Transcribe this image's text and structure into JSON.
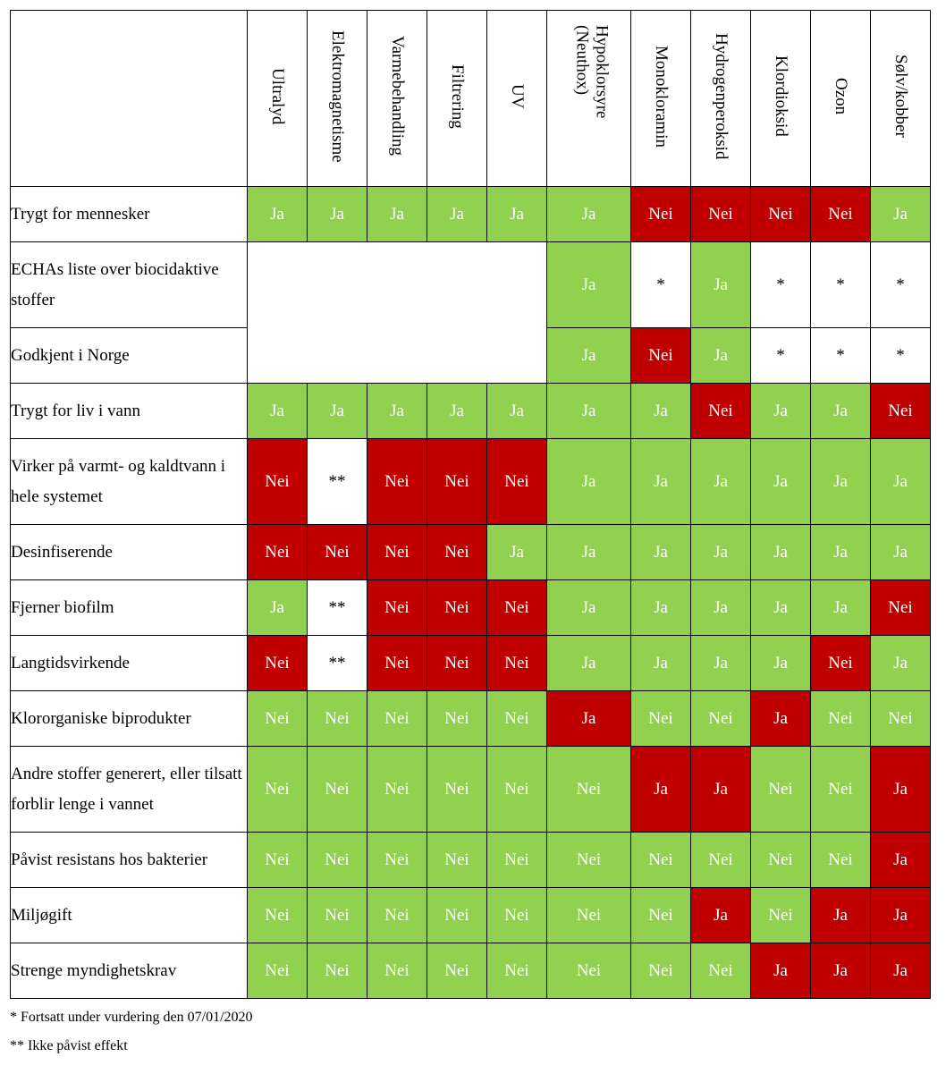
{
  "columns": [
    "Ultralyd",
    "Elektromagnetisme",
    "Varmebehandling",
    "Filtrering",
    "UV",
    "Hypoklorsyre (Neuthox)",
    "Monokloramin",
    "Hydrogenperoksid",
    "Klordioksid",
    "Ozon",
    "Sølv/kobber"
  ],
  "rows": [
    {
      "label": "Trygt for mennesker",
      "cells": [
        "Ja",
        "Ja",
        "Ja",
        "Ja",
        "Ja",
        "Ja",
        "Nei",
        "Nei",
        "Nei",
        "Nei",
        "Ja"
      ]
    },
    {
      "label": "ECHAs liste over biocidaktive stoffer",
      "cells": [
        "",
        "",
        "",
        "",
        "",
        "Ja",
        "*",
        "Ja",
        "*",
        "*",
        "*"
      ]
    },
    {
      "label": "Godkjent i Norge",
      "cells": [
        "",
        "",
        "",
        "",
        "",
        "Ja",
        "Nei",
        "Ja",
        "*",
        "*",
        "*"
      ]
    },
    {
      "label": "Trygt for liv i vann",
      "cells": [
        "Ja",
        "Ja",
        "Ja",
        "Ja",
        "Ja",
        "Ja",
        "Ja",
        "Nei",
        "Ja",
        "Ja",
        "Nei"
      ]
    },
    {
      "label": "Virker på varmt- og kaldtvann i hele systemet",
      "cells": [
        "Nei",
        "**",
        "Nei",
        "Nei",
        "Nei",
        "Ja",
        "Ja",
        "Ja",
        "Ja",
        "Ja",
        "Ja"
      ]
    },
    {
      "label": "Desinfiserende",
      "cells": [
        "Nei",
        "Nei",
        "Nei",
        "Nei",
        "Ja",
        "Ja",
        "Ja",
        "Ja",
        "Ja",
        "Ja",
        "Ja"
      ]
    },
    {
      "label": "Fjerner biofilm",
      "cells": [
        "Ja",
        "**",
        "Nei",
        "Nei",
        "Nei",
        "Ja",
        "Ja",
        "Ja",
        "Ja",
        "Ja",
        "Nei"
      ]
    },
    {
      "label": "Langtidsvirkende",
      "cells": [
        "Nei",
        "**",
        "Nei",
        "Nei",
        "Nei",
        "Ja",
        "Ja",
        "Ja",
        "Ja",
        "Nei",
        "Ja"
      ]
    },
    {
      "label": "Klororganiske biprodukter",
      "cells": [
        "Nei",
        "Nei",
        "Nei",
        "Nei",
        "Nei",
        "Ja",
        "Nei",
        "Nei",
        "Ja",
        "Nei",
        "Nei"
      ]
    },
    {
      "label": "Andre stoffer generert, eller tilsatt forblir lenge i vannet",
      "cells": [
        "Nei",
        "Nei",
        "Nei",
        "Nei",
        "Nei",
        "Nei",
        "Ja",
        "Ja",
        "Nei",
        "Nei",
        "Ja"
      ]
    },
    {
      "label": "Påvist resistans hos bakterier",
      "cells": [
        "Nei",
        "Nei",
        "Nei",
        "Nei",
        "Nei",
        "Nei",
        "Nei",
        "Nei",
        "Nei",
        "Nei",
        "Ja"
      ]
    },
    {
      "label": "Miljøgift",
      "cells": [
        "Nei",
        "Nei",
        "Nei",
        "Nei",
        "Nei",
        "Nei",
        "Nei",
        "Ja",
        "Nei",
        "Ja",
        "Ja"
      ]
    },
    {
      "label": "Strenge myndighetskrav",
      "cells": [
        "Nei",
        "Nei",
        "Nei",
        "Nei",
        "Nei",
        "Nei",
        "Nei",
        "Nei",
        "Ja",
        "Ja",
        "Ja"
      ]
    }
  ],
  "cell_colors": [
    [
      "g",
      "g",
      "g",
      "g",
      "g",
      "g",
      "r",
      "r",
      "r",
      "r",
      "g"
    ],
    [
      "x",
      "x",
      "x",
      "x",
      "x",
      "g",
      "w",
      "g",
      "w",
      "w",
      "w"
    ],
    [
      "x",
      "x",
      "x",
      "x",
      "x",
      "g",
      "r",
      "g",
      "w",
      "w",
      "w"
    ],
    [
      "g",
      "g",
      "g",
      "g",
      "g",
      "g",
      "g",
      "r",
      "g",
      "g",
      "r"
    ],
    [
      "r",
      "w",
      "r",
      "r",
      "r",
      "g",
      "g",
      "g",
      "g",
      "g",
      "g"
    ],
    [
      "r",
      "r",
      "r",
      "r",
      "g",
      "g",
      "g",
      "g",
      "g",
      "g",
      "g"
    ],
    [
      "g",
      "w",
      "r",
      "r",
      "r",
      "g",
      "g",
      "g",
      "g",
      "g",
      "r"
    ],
    [
      "r",
      "w",
      "r",
      "r",
      "r",
      "g",
      "g",
      "g",
      "g",
      "r",
      "g"
    ],
    [
      "g",
      "g",
      "g",
      "g",
      "g",
      "r",
      "g",
      "g",
      "r",
      "g",
      "g"
    ],
    [
      "g",
      "g",
      "g",
      "g",
      "g",
      "g",
      "r",
      "r",
      "g",
      "g",
      "r"
    ],
    [
      "g",
      "g",
      "g",
      "g",
      "g",
      "g",
      "g",
      "g",
      "g",
      "g",
      "r"
    ],
    [
      "g",
      "g",
      "g",
      "g",
      "g",
      "g",
      "g",
      "r",
      "g",
      "r",
      "r"
    ],
    [
      "g",
      "g",
      "g",
      "g",
      "g",
      "g",
      "g",
      "g",
      "r",
      "r",
      "r"
    ]
  ],
  "colors": {
    "green": "#92d050",
    "red": "#c00000",
    "white": "#ffffff"
  },
  "footnotes": [
    "* Fortsatt under vurdering den 07/01/2020",
    "** Ikke påvist effekt"
  ]
}
